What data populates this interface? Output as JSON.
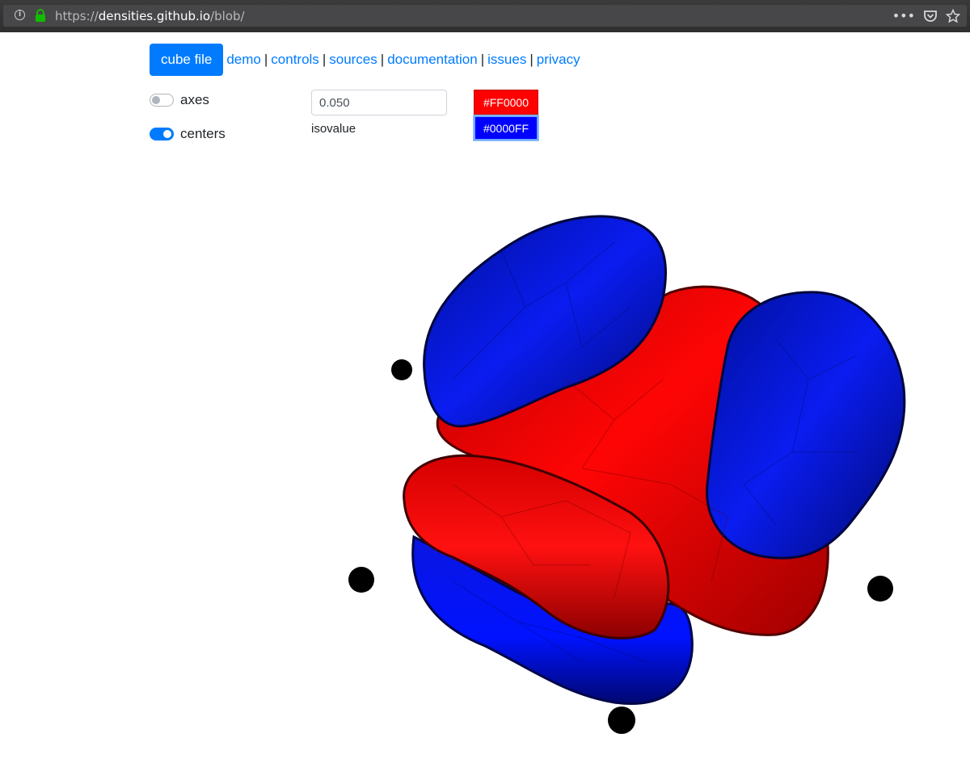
{
  "browser": {
    "url_scheme": "https://",
    "url_host": "densities.github.io",
    "url_path": "/blob/",
    "icons": [
      "info-icon",
      "lock-icon",
      "more-icon",
      "pocket-icon",
      "bookmark-star-icon"
    ]
  },
  "nav": {
    "cube_file_label": "cube file",
    "links": [
      "demo",
      "controls",
      "sources",
      "documentation",
      "issues",
      "privacy"
    ]
  },
  "toggles": {
    "axes": {
      "label": "axes",
      "on": false
    },
    "centers": {
      "label": "centers",
      "on": true
    }
  },
  "isovalue": {
    "value": "0.050",
    "label": "isovalue"
  },
  "colors": {
    "positive": {
      "label": "#FF0000",
      "hex": "#FF0000"
    },
    "negative": {
      "label": "#0000FF",
      "hex": "#0000FF"
    },
    "accent": "#007bff"
  }
}
